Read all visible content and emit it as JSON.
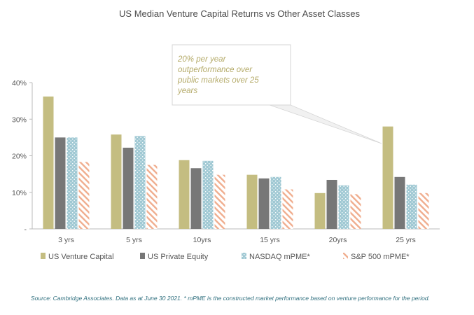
{
  "chart_data": {
    "type": "bar",
    "title": "US Median Venture Capital Returns vs Other Asset Classes",
    "categories": [
      "3 yrs",
      "5 yrs",
      "10yrs",
      "15 yrs",
      "20yrs",
      "25 yrs"
    ],
    "ylim": [
      0,
      40
    ],
    "yticks": [
      0,
      10,
      20,
      30,
      40
    ],
    "ytick_labels": [
      "-",
      "10%",
      "20%",
      "30%",
      "40%"
    ],
    "series": [
      {
        "name": "US Venture Capital",
        "values": [
          36.2,
          25.8,
          18.8,
          14.8,
          9.8,
          28.0
        ]
      },
      {
        "name": "US Private Equity",
        "values": [
          25.0,
          22.2,
          16.6,
          13.8,
          13.4,
          14.2
        ]
      },
      {
        "name": "NASDAQ mPME*",
        "values": [
          25.0,
          25.4,
          18.6,
          14.2,
          11.9,
          12.1
        ]
      },
      {
        "name": "S&P 500 mPME*",
        "values": [
          18.3,
          17.5,
          14.8,
          10.8,
          9.5,
          9.8
        ]
      }
    ],
    "annotation": [
      "20% per year",
      "outperformance over",
      "public markets over 25",
      "years"
    ],
    "source": "Source: Cambridge Associates. Data as at June 30 2021. * mPME is the constructed market performance based on venture performance for the period."
  },
  "colors": {
    "vc": "#c4bd81",
    "pe": "#777777",
    "nasdaq": "#9fc8d3",
    "sp": "#f0ad8e",
    "note_text": "#b5ab6a",
    "source_text": "#2f6f7e"
  }
}
